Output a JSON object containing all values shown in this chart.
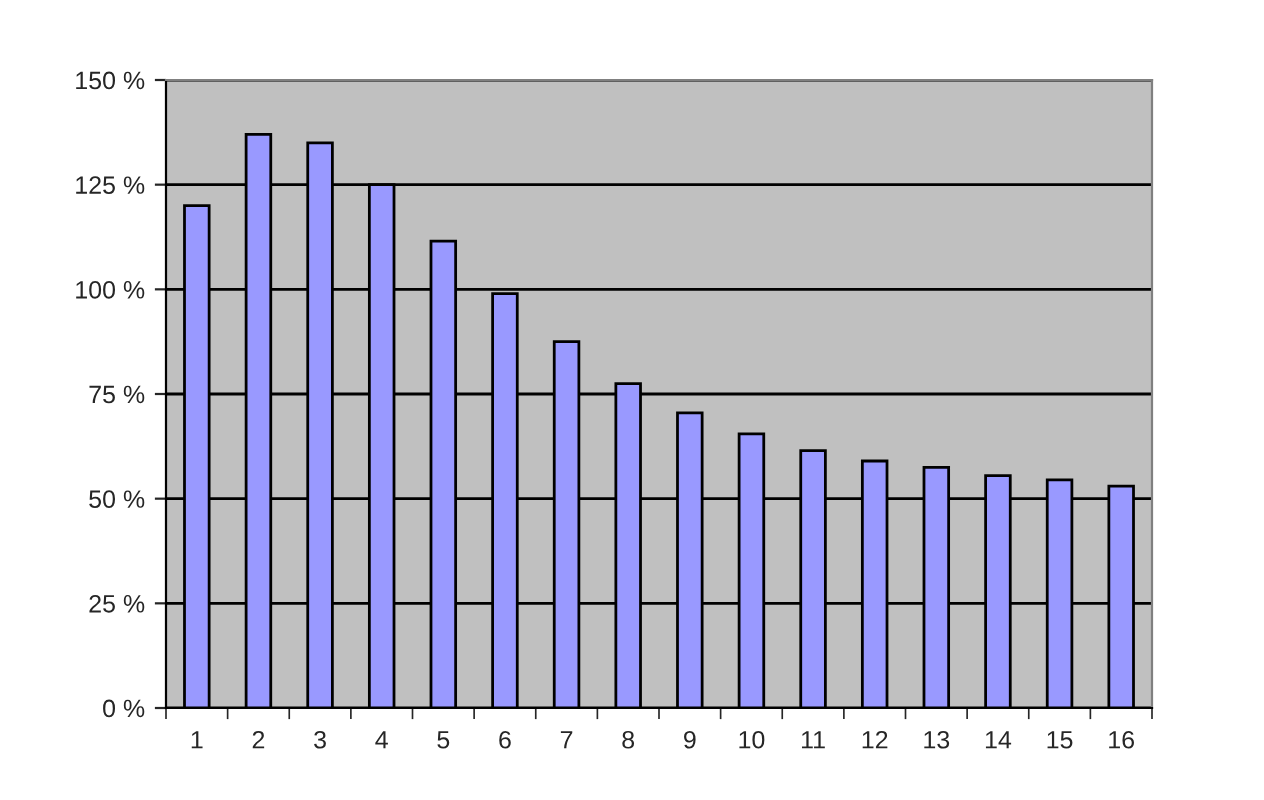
{
  "chart_data": {
    "type": "bar",
    "categories": [
      "1",
      "2",
      "3",
      "4",
      "5",
      "6",
      "7",
      "8",
      "9",
      "10",
      "11",
      "12",
      "13",
      "14",
      "15",
      "16"
    ],
    "values": [
      120,
      137,
      135,
      125,
      111.5,
      99,
      87.5,
      77.5,
      70.5,
      65.5,
      61.5,
      59,
      57.5,
      55.5,
      54.5,
      53
    ],
    "color": "#9999ff",
    "ylim": [
      0,
      150
    ],
    "yticks": [
      {
        "value": 0,
        "label": "0 %"
      },
      {
        "value": 25,
        "label": "25 %"
      },
      {
        "value": 50,
        "label": "50 %"
      },
      {
        "value": 75,
        "label": "75 %"
      },
      {
        "value": 100,
        "label": "100 %"
      },
      {
        "value": 125,
        "label": "125 %"
      },
      {
        "value": 150,
        "label": "150 %"
      }
    ],
    "grid": "y",
    "legend": false
  }
}
